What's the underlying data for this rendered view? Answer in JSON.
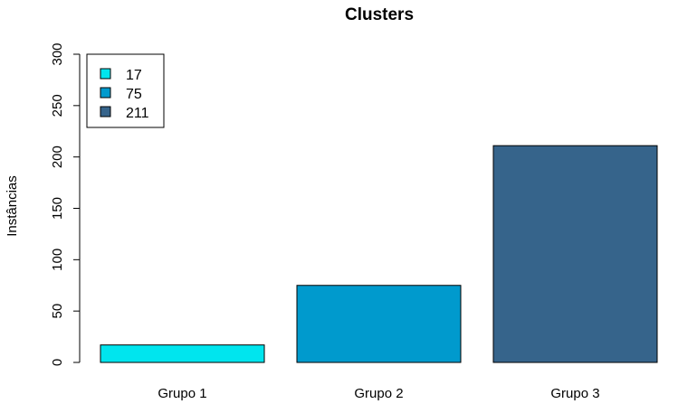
{
  "chart_data": {
    "type": "bar",
    "title": "Clusters",
    "xlabel": "",
    "ylabel": "Instâncias",
    "categories": [
      "Grupo 1",
      "Grupo 2",
      "Grupo 3"
    ],
    "values": [
      17,
      75,
      211
    ],
    "colors": [
      "#00e5ee",
      "#009acd",
      "#36648b"
    ],
    "ylim": [
      0,
      300
    ],
    "yticks": [
      0,
      50,
      100,
      150,
      200,
      250,
      300
    ],
    "legend": {
      "position": "top-left",
      "entries": [
        "17",
        "75",
        "211"
      ]
    },
    "grid": false
  }
}
